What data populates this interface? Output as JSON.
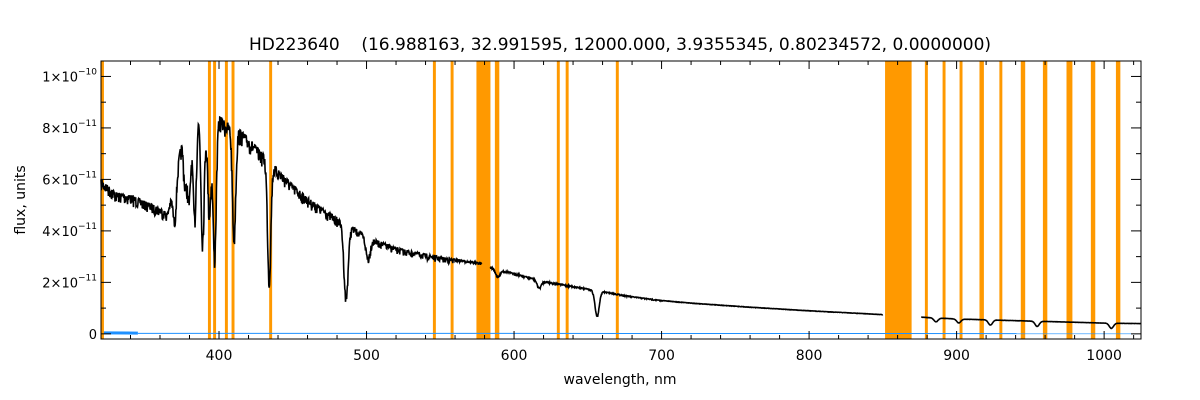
{
  "chart_data": {
    "type": "line",
    "title": "HD223640    (16.988163, 32.991595, 12000.000, 3.9355345, 0.80234572, 0.0000000)",
    "xlabel": "wavelength, nm",
    "ylabel": "flux, units",
    "xlim": [
      320,
      1025
    ],
    "ylim": [
      -2e-12,
      1.06e-10
    ],
    "x_ticks": [
      400,
      500,
      600,
      700,
      800,
      900,
      1000
    ],
    "y_ticks": [
      {
        "value": 0,
        "mantissa": "0",
        "exp": ""
      },
      {
        "value": 2e-11,
        "mantissa": "2×10",
        "exp": "−11"
      },
      {
        "value": 4e-11,
        "mantissa": "4×10",
        "exp": "−11"
      },
      {
        "value": 6e-11,
        "mantissa": "6×10",
        "exp": "−11"
      },
      {
        "value": 8e-11,
        "mantissa": "8×10",
        "exp": "−11"
      },
      {
        "value": 1e-10,
        "mantissa": "1×10",
        "exp": "−10"
      }
    ],
    "colors": {
      "spectrum": "#000000",
      "masks": "#ff9900",
      "error": "#1e90ff",
      "axes": "#000000"
    },
    "masked_regions": [
      [
        320,
        322
      ],
      [
        392.5,
        394.5
      ],
      [
        396,
        398
      ],
      [
        404,
        406
      ],
      [
        408.5,
        410.5
      ],
      [
        434,
        436
      ],
      [
        545,
        547
      ],
      [
        557,
        559
      ],
      [
        574.5,
        584
      ],
      [
        587,
        590
      ],
      [
        629,
        631
      ],
      [
        635,
        637
      ],
      [
        669,
        671
      ],
      [
        851.5,
        869.5
      ],
      [
        878.5,
        880.5
      ],
      [
        890.5,
        892.5
      ],
      [
        902,
        904
      ],
      [
        915.5,
        918.5
      ],
      [
        929,
        931
      ],
      [
        943.5,
        946.5
      ],
      [
        958.5,
        961.5
      ],
      [
        974.5,
        978.5
      ],
      [
        991,
        994
      ],
      [
        1008,
        1011
      ]
    ],
    "gaps": [
      [
        578,
        584
      ],
      [
        850,
        876
      ]
    ],
    "series": [
      {
        "x": [
          320,
          330,
          340,
          350,
          360,
          365,
          370,
          375,
          380,
          385,
          390,
          395,
          400,
          405,
          410,
          415,
          420,
          430,
          440,
          450,
          460,
          470,
          480,
          490,
          500,
          520,
          540,
          560,
          578,
          584,
          600,
          620,
          640,
          660,
          680,
          700,
          720,
          740,
          760,
          780,
          800,
          820,
          850,
          876,
          900,
          925,
          950,
          975,
          1000,
          1025
        ],
        "y": [
          6e-11,
          5.5e-11,
          5.4e-11,
          5.15e-11,
          4.9e-11,
          4.7e-11,
          6e-11,
          7.6e-11,
          8.4e-11,
          8.7e-11,
          8.6e-11,
          8.2e-11,
          8.5e-11,
          8.2e-11,
          8.1e-11,
          7.9e-11,
          7.6e-11,
          7e-11,
          6.4e-11,
          5.8e-11,
          5.3e-11,
          4.9e-11,
          4.5e-11,
          4.2e-11,
          3.8e-11,
          3.35e-11,
          3.1e-11,
          2.9e-11,
          2.75e-11,
          2.6e-11,
          2.35e-11,
          2.05e-11,
          1.85e-11,
          1.65e-11,
          1.45e-11,
          1.3e-11,
          1.2e-11,
          1.12e-11,
          1.04e-11,
          9.7e-12,
          9e-12,
          8.4e-12,
          7.5e-12,
          6.5e-12,
          5.8e-12,
          5.4e-12,
          5e-12,
          4.6e-12,
          4.2e-12,
          4e-12
        ]
      }
    ],
    "absorption_lines": [
      {
        "x": 370.0,
        "depth": 1.5e-11
      },
      {
        "x": 377.1,
        "depth": 2e-11
      },
      {
        "x": 379.8,
        "depth": 3e-11
      },
      {
        "x": 383.5,
        "depth": 4e-11
      },
      {
        "x": 388.9,
        "depth": 4.8e-11
      },
      {
        "x": 393.4,
        "depth": 3.5e-11
      },
      {
        "x": 397.0,
        "depth": 5.2e-11
      },
      {
        "x": 410.2,
        "depth": 4.2e-11
      },
      {
        "x": 434.0,
        "depth": 4.6e-11
      },
      {
        "x": 486.1,
        "depth": 2.9e-11
      },
      {
        "x": 501.0,
        "depth": 8e-12
      },
      {
        "x": 656.3,
        "depth": 1e-11
      },
      {
        "x": 617.0,
        "depth": 3e-12
      },
      {
        "x": 589.0,
        "depth": 3e-12
      },
      {
        "x": 886.0,
        "depth": 1.5e-12
      },
      {
        "x": 901.5,
        "depth": 1.5e-12
      },
      {
        "x": 922.9,
        "depth": 2e-12
      },
      {
        "x": 954.6,
        "depth": 2e-12
      },
      {
        "x": 1004.9,
        "depth": 2e-12
      }
    ]
  }
}
